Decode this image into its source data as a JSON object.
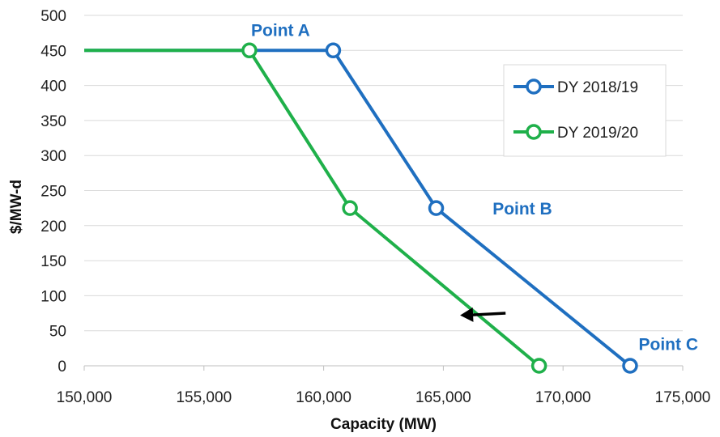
{
  "chart_data": {
    "type": "line",
    "xlabel": "Capacity (MW)",
    "ylabel": "$/MW-d",
    "xlim": [
      150000,
      175000
    ],
    "ylim": [
      0,
      500
    ],
    "xticks": [
      150000,
      155000,
      160000,
      165000,
      170000,
      175000
    ],
    "xtick_labels": [
      "150,000",
      "155,000",
      "160,000",
      "165,000",
      "170,000",
      "175,000"
    ],
    "yticks": [
      0,
      50,
      100,
      150,
      200,
      250,
      300,
      350,
      400,
      450,
      500
    ],
    "ytick_labels": [
      "0",
      "50",
      "100",
      "150",
      "200",
      "250",
      "300",
      "350",
      "400",
      "450",
      "500"
    ],
    "grid": "horizontal",
    "legend_position": "right",
    "series": [
      {
        "name": "DY 2018/19",
        "color": "#1f6fc0",
        "line_start_x": 150000,
        "points": [
          {
            "x": 160400,
            "y": 450
          },
          {
            "x": 164700,
            "y": 225
          },
          {
            "x": 172800,
            "y": 0
          }
        ]
      },
      {
        "name": "DY 2019/20",
        "color": "#1fb04a",
        "line_start_x": 150000,
        "points": [
          {
            "x": 156900,
            "y": 450
          },
          {
            "x": 161100,
            "y": 225
          },
          {
            "x": 169000,
            "y": 0
          }
        ]
      }
    ],
    "annotations": [
      {
        "text": "Point A",
        "color": "#1f6fc0",
        "x": 158200,
        "y": 480
      },
      {
        "text": "Point B",
        "color": "#1f6fc0",
        "x": 168300,
        "y": 225
      },
      {
        "text": "Point C",
        "color": "#1f6fc0",
        "x": 174400,
        "y": 32
      }
    ],
    "arrow": {
      "from": {
        "x": 167600,
        "y": 75
      },
      "to": {
        "x": 165700,
        "y": 72
      },
      "color": "#000000"
    }
  }
}
